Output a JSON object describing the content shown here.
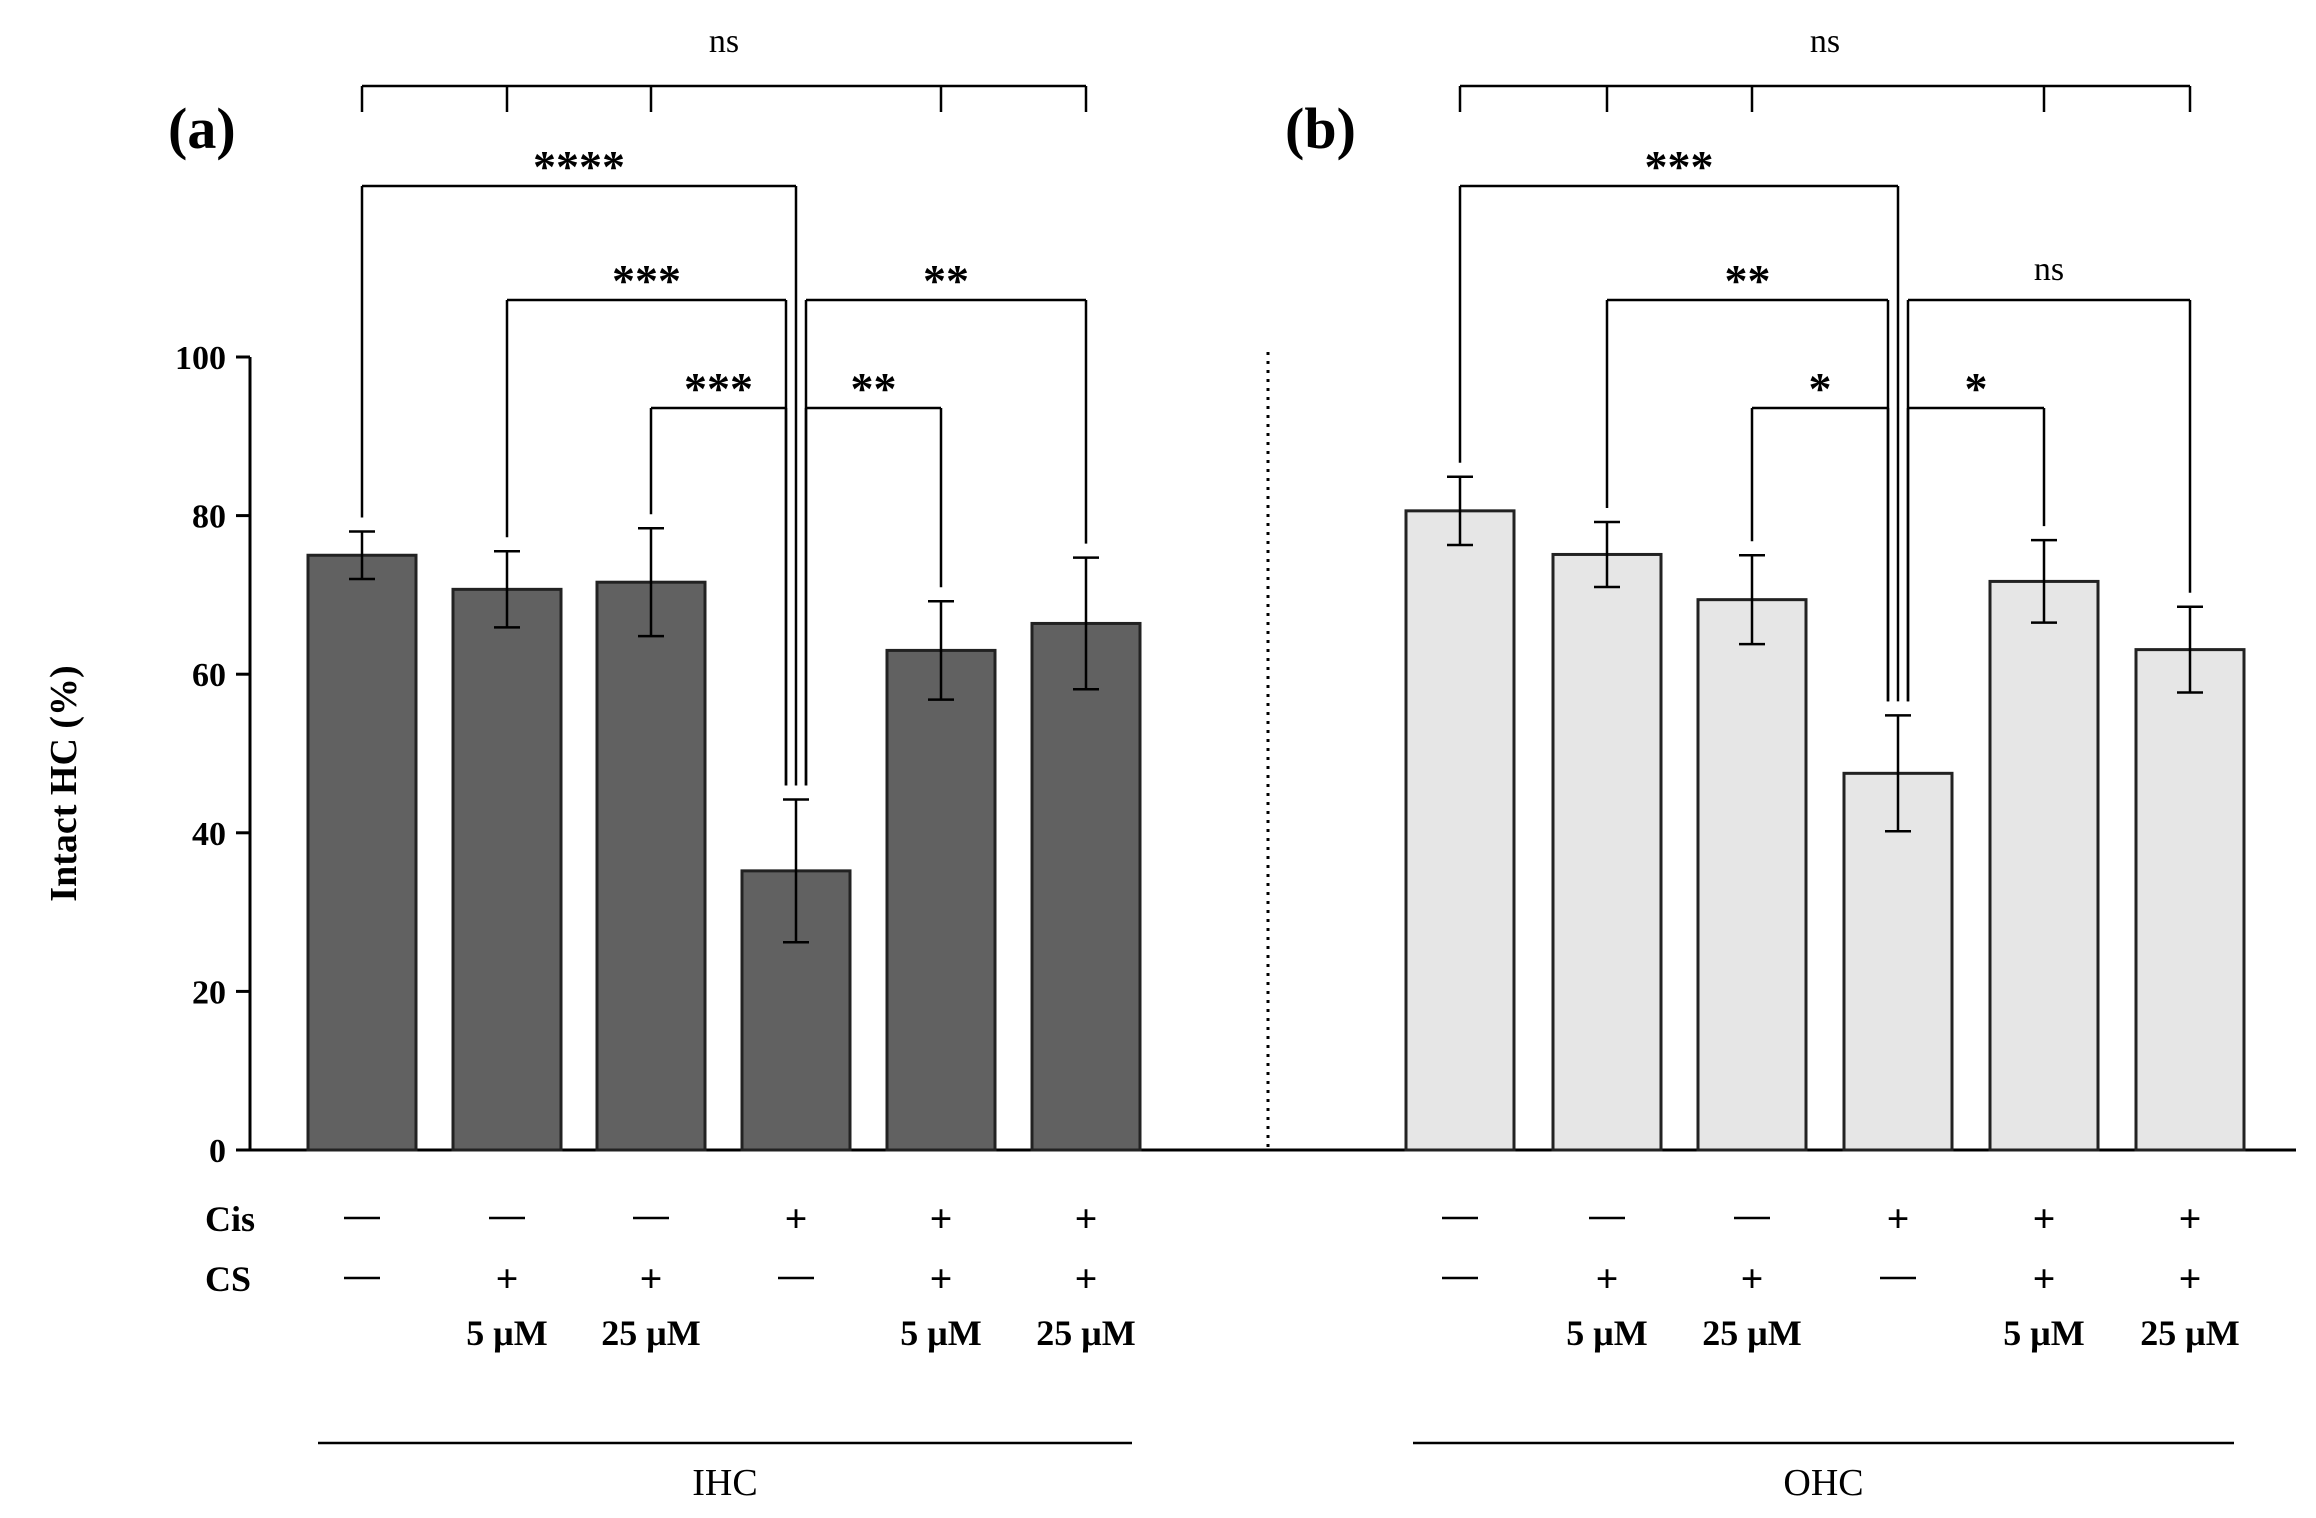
{
  "chart_data": {
    "type": "bar",
    "ylabel": "Intact HC (%)",
    "ylim": [
      0,
      100
    ],
    "yticks": [
      0,
      20,
      40,
      60,
      80,
      100
    ],
    "row_labels": {
      "cis": "Cis",
      "cs": "CS"
    },
    "symbols": {
      "minus": "—",
      "plus": "+"
    },
    "panels": [
      {
        "label": "(a)",
        "group_label": "IHC",
        "color": "#616161",
        "bars": [
          {
            "value": 75.0,
            "err": 3.0,
            "cis": "—",
            "cs": "—",
            "conc": ""
          },
          {
            "value": 70.7,
            "err": 4.8,
            "cis": "—",
            "cs": "+",
            "conc": "5 μM"
          },
          {
            "value": 71.6,
            "err": 6.8,
            "cis": "—",
            "cs": "+",
            "conc": "25 μM"
          },
          {
            "value": 35.2,
            "err": 9.0,
            "cis": "+",
            "cs": "—",
            "conc": ""
          },
          {
            "value": 63.0,
            "err": 6.2,
            "cis": "+",
            "cs": "+",
            "conc": "5 μM"
          },
          {
            "value": 66.4,
            "err": 8.3,
            "cis": "+",
            "cs": "+",
            "conc": "25 μM"
          }
        ],
        "comparisons": [
          {
            "type": "multi",
            "label": "ns",
            "bars": [
              0,
              1,
              2,
              4,
              5
            ]
          },
          {
            "type": "pair",
            "label": "****",
            "from": 0,
            "to": 3
          },
          {
            "type": "pair",
            "label": "***",
            "from": 1,
            "to": 3
          },
          {
            "type": "pair",
            "label": "***",
            "from": 2,
            "to": 3
          },
          {
            "type": "pair",
            "label": "**",
            "from": 3,
            "to": 4
          },
          {
            "type": "pair",
            "label": "**",
            "from": 3,
            "to": 5
          }
        ]
      },
      {
        "label": "(b)",
        "group_label": "OHC",
        "color": "#e6e6e6",
        "bars": [
          {
            "value": 80.6,
            "err": 4.3,
            "cis": "—",
            "cs": "—",
            "conc": ""
          },
          {
            "value": 75.1,
            "err": 4.1,
            "cis": "—",
            "cs": "+",
            "conc": "5 μM"
          },
          {
            "value": 69.4,
            "err": 5.6,
            "cis": "—",
            "cs": "+",
            "conc": "25 μM"
          },
          {
            "value": 47.5,
            "err": 7.3,
            "cis": "+",
            "cs": "—",
            "conc": ""
          },
          {
            "value": 71.7,
            "err": 5.2,
            "cis": "+",
            "cs": "+",
            "conc": "5 μM"
          },
          {
            "value": 63.1,
            "err": 5.4,
            "cis": "+",
            "cs": "+",
            "conc": "25 μM"
          }
        ],
        "comparisons": [
          {
            "type": "multi",
            "label": "ns",
            "bars": [
              0,
              1,
              2,
              4,
              5
            ]
          },
          {
            "type": "pair",
            "label": "***",
            "from": 0,
            "to": 3
          },
          {
            "type": "pair",
            "label": "**",
            "from": 1,
            "to": 3
          },
          {
            "type": "pair",
            "label": "*",
            "from": 2,
            "to": 3
          },
          {
            "type": "pair",
            "label": "*",
            "from": 3,
            "to": 4
          },
          {
            "type": "pair",
            "label": "ns",
            "from": 3,
            "to": 5
          }
        ]
      }
    ]
  }
}
